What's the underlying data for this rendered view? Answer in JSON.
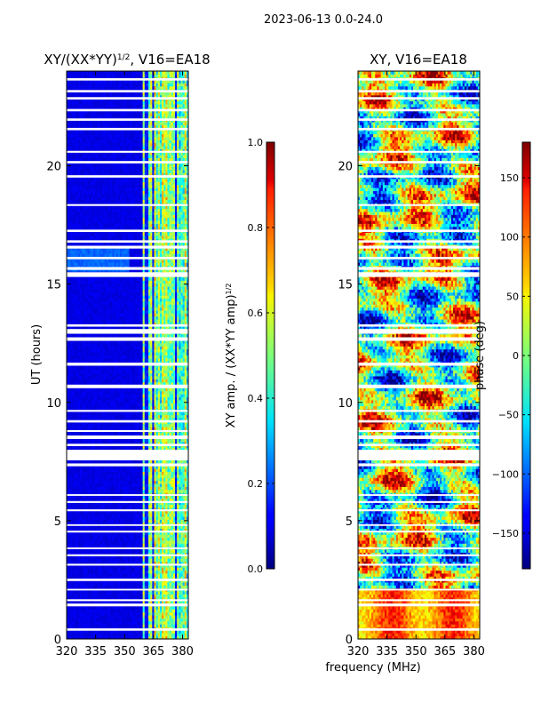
{
  "figure": {
    "suptitle": "2023-06-13 0.0-24.0",
    "xlabel_shared": "frequency (MHz)",
    "ylabel_left": "UT (hours)"
  },
  "chart_data": [
    {
      "type": "heatmap",
      "title_html": "XY/(XX*YY)<tspan baseline-shift=\"super\" font-size=\"9\">1/2</tspan>, V16=EA18",
      "title_text": "XY/(XX*YY)1/2, V16=EA18",
      "x_ticks": [
        320,
        335,
        350,
        365,
        380
      ],
      "x_tick_labels": [
        "320",
        "335",
        "350",
        "365",
        "380"
      ],
      "xlim": [
        320,
        383
      ],
      "y_ticks": [
        0,
        5,
        10,
        15,
        20
      ],
      "y_tick_labels": [
        "0",
        "5",
        "10",
        "15",
        "20"
      ],
      "ylim": [
        0,
        24
      ],
      "ylabel": "UT (hours)",
      "colormap": "jet",
      "colorbar": {
        "vmin": 0.0,
        "vmax": 1.0,
        "ticks": [
          0.0,
          0.2,
          0.4,
          0.6,
          0.8,
          1.0
        ],
        "tick_labels": [
          "0.0",
          "0.2",
          "0.4",
          "0.6",
          "0.8",
          "1.0"
        ],
        "label_text": "XY amp. / (XX*YY amp)1/2",
        "label_html": "XY amp. / (XX*YY amp)<tspan baseline-shift=\"super\" font-size=\"8\">1/2</tspan>"
      }
    },
    {
      "type": "heatmap",
      "title_text": "XY, V16=EA18",
      "x_ticks": [
        320,
        335,
        350,
        365,
        380
      ],
      "x_tick_labels": [
        "320",
        "335",
        "350",
        "365",
        "380"
      ],
      "xlim": [
        320,
        383
      ],
      "y_ticks": [
        0,
        5,
        10,
        15,
        20
      ],
      "y_tick_labels": [
        "0",
        "5",
        "10",
        "15",
        "20"
      ],
      "ylim": [
        0,
        24
      ],
      "xlabel": "frequency (MHz)",
      "colormap": "jet",
      "colorbar": {
        "vmin": -180,
        "vmax": 180,
        "ticks": [
          -150,
          -100,
          -50,
          0,
          50,
          100,
          150
        ],
        "tick_labels": [
          "−150",
          "−100",
          "−50",
          "0",
          "50",
          "100",
          "150"
        ],
        "label_text": "phase (deg)"
      }
    }
  ],
  "flagged_time_bands_hours": [
    [
      0.35,
      0.45
    ],
    [
      1.38,
      1.5
    ],
    [
      1.6,
      1.68
    ],
    [
      2.05,
      2.12
    ],
    [
      2.45,
      2.55
    ],
    [
      3.1,
      3.18
    ],
    [
      3.5,
      3.58
    ],
    [
      3.8,
      3.87
    ],
    [
      4.5,
      4.58
    ],
    [
      4.78,
      4.85
    ],
    [
      5.4,
      5.48
    ],
    [
      5.75,
      5.83
    ],
    [
      6.05,
      6.12
    ],
    [
      7.3,
      7.42
    ],
    [
      7.55,
      8.0
    ],
    [
      8.15,
      8.25
    ],
    [
      8.45,
      8.6
    ],
    [
      8.75,
      8.83
    ],
    [
      9.15,
      9.25
    ],
    [
      9.6,
      9.68
    ],
    [
      10.6,
      10.75
    ],
    [
      11.55,
      11.68
    ],
    [
      12.6,
      12.75
    ],
    [
      12.9,
      13.1
    ],
    [
      13.2,
      13.3
    ],
    [
      15.3,
      15.5
    ],
    [
      15.6,
      15.72
    ],
    [
      16.05,
      16.15
    ],
    [
      16.5,
      16.62
    ],
    [
      16.75,
      16.85
    ],
    [
      17.2,
      17.3
    ],
    [
      18.3,
      18.38
    ],
    [
      19.5,
      19.6
    ],
    [
      20.1,
      20.2
    ],
    [
      20.55,
      20.63
    ],
    [
      21.5,
      21.6
    ],
    [
      21.9,
      22.0
    ],
    [
      22.3,
      22.4
    ],
    [
      22.8,
      22.9
    ],
    [
      23.1,
      23.2
    ],
    [
      23.6,
      23.7
    ]
  ]
}
